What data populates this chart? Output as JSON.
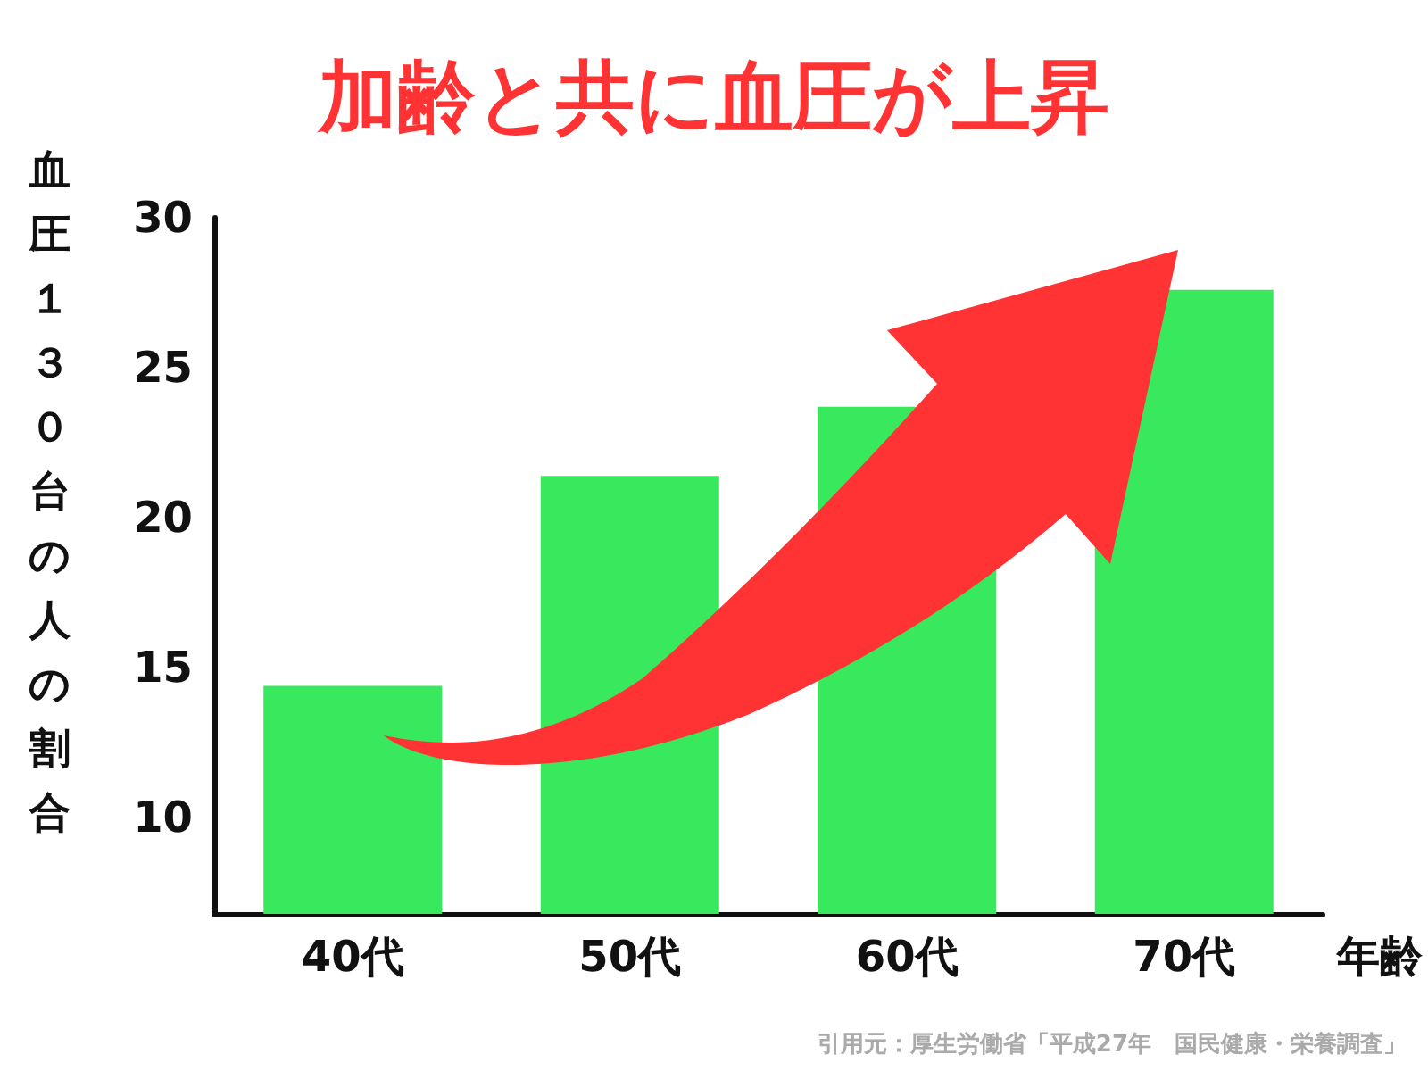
{
  "chart_data": {
    "type": "bar",
    "title": "加齢と共に血圧が上昇",
    "xlabel": "年齢",
    "ylabel": "血圧１３０台の人の割合",
    "categories": [
      "40代",
      "50代",
      "60代",
      "70代"
    ],
    "values": [
      14.4,
      21.4,
      23.7,
      27.6
    ],
    "color": "#38e85d",
    "ylim": [
      6.8,
      30
    ],
    "yticks": [
      10,
      15,
      20,
      25,
      30
    ],
    "grid": false,
    "annotations": [
      "引用元：厚生労働省「平成27年　国民健康・栄養調査」"
    ]
  }
}
